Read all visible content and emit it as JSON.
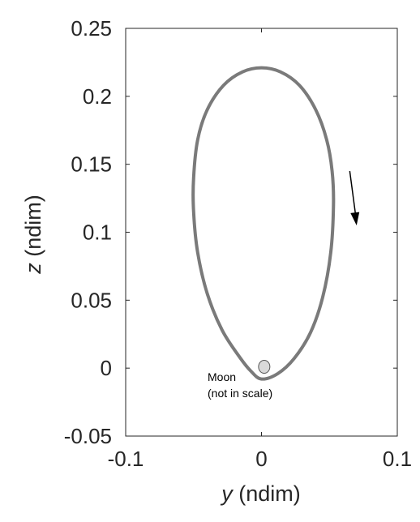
{
  "chart_data": {
    "type": "line",
    "x_axis": {
      "label_var": "y",
      "label_unit": "(ndim)",
      "lim": [
        -0.1,
        0.1
      ],
      "ticks": [
        -0.1,
        0,
        0.1
      ],
      "tick_labels": [
        "-0.1",
        "0",
        "0.1"
      ]
    },
    "y_axis": {
      "label_var": "z",
      "label_unit": "(ndim)",
      "lim": [
        -0.05,
        0.25
      ],
      "ticks": [
        -0.05,
        0,
        0.05,
        0.1,
        0.15,
        0.2,
        0.25
      ],
      "tick_labels": [
        "-0.05",
        "0",
        "0.05",
        "0.1",
        "0.15",
        "0.2",
        "0.25"
      ]
    },
    "grid": false,
    "series": [
      {
        "color": "#7a7a7a",
        "points": [
          [
            0.0,
            -0.008
          ],
          [
            0.012,
            -0.004
          ],
          [
            0.024,
            0.007
          ],
          [
            0.036,
            0.026
          ],
          [
            0.045,
            0.052
          ],
          [
            0.051,
            0.085
          ],
          [
            0.053,
            0.12
          ],
          [
            0.052,
            0.145
          ],
          [
            0.048,
            0.168
          ],
          [
            0.04,
            0.19
          ],
          [
            0.028,
            0.208
          ],
          [
            0.014,
            0.218
          ],
          [
            0.0,
            0.221
          ],
          [
            -0.014,
            0.218
          ],
          [
            -0.028,
            0.208
          ],
          [
            -0.04,
            0.19
          ],
          [
            -0.047,
            0.168
          ],
          [
            -0.05,
            0.14
          ],
          [
            -0.05,
            0.115
          ],
          [
            -0.047,
            0.085
          ],
          [
            -0.04,
            0.055
          ],
          [
            -0.029,
            0.028
          ],
          [
            -0.016,
            0.008
          ],
          [
            -0.008,
            -0.002
          ],
          [
            0.0,
            -0.008
          ]
        ]
      }
    ],
    "moon": {
      "x": 0.002,
      "z": 0.001,
      "fill": "#d9d9d9",
      "label_lines": [
        "Moon",
        "(not in scale)"
      ]
    },
    "direction_arrow": {
      "from": [
        0.065,
        0.145
      ],
      "to": [
        0.07,
        0.105
      ],
      "color": "#000000"
    }
  }
}
